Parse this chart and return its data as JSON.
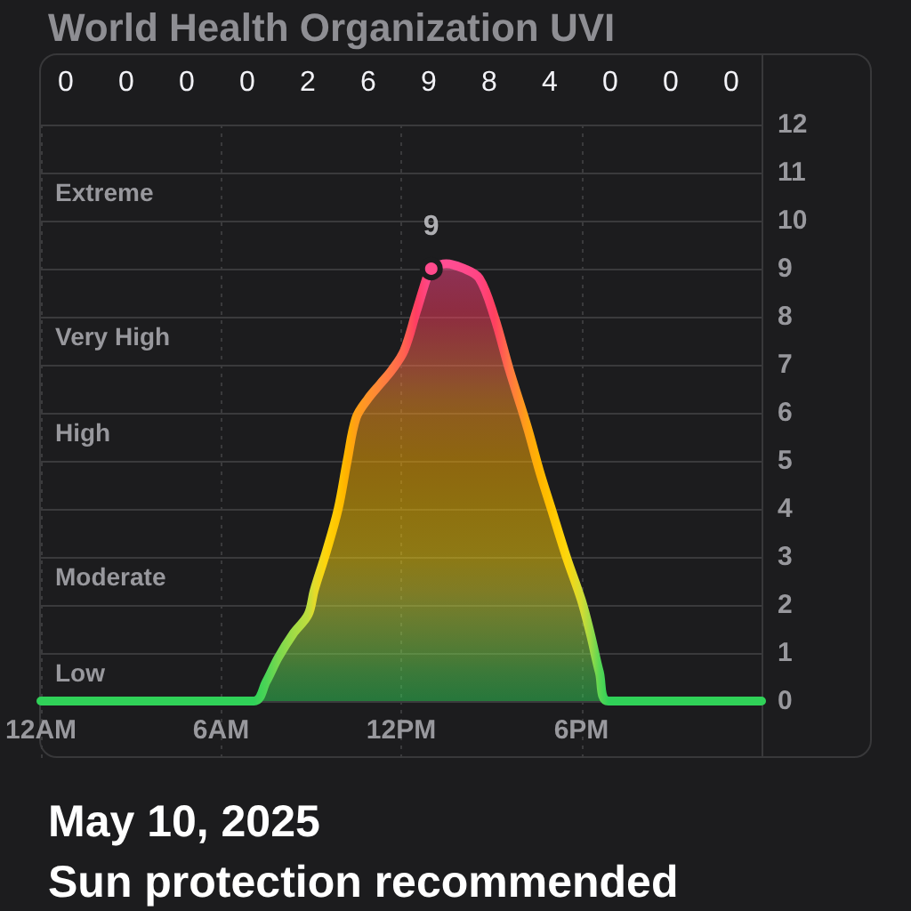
{
  "chart_data": {
    "type": "area",
    "title": "World Health Organization UVI",
    "annotations": [
      {
        "text": "9",
        "x": "2025-05-10T13:00",
        "y": 9
      },
      "0",
      "0",
      "0",
      "0",
      "2",
      "6",
      "9",
      "8",
      "4",
      "0",
      "0",
      "0",
      "Extreme",
      "Very High",
      "High",
      "Moderate",
      "Low",
      "May 10, 2025",
      "Sun protection recommended"
    ],
    "x": [
      "2025-05-10T00:00",
      "2025-05-10T07:06",
      "2025-05-10T07:30",
      "2025-05-10T07:54",
      "2025-05-10T08:24",
      "2025-05-10T08:54",
      "2025-05-10T09:06",
      "2025-05-10T09:30",
      "2025-05-10T09:54",
      "2025-05-10T10:12",
      "2025-05-10T10:30",
      "2025-05-10T10:54",
      "2025-05-10T11:18",
      "2025-05-10T11:42",
      "2025-05-10T12:06",
      "2025-05-10T12:30",
      "2025-05-10T12:54",
      "2025-05-10T13:00",
      "2025-05-10T13:30",
      "2025-05-10T14:06",
      "2025-05-10T14:36",
      "2025-05-10T15:06",
      "2025-05-10T15:36",
      "2025-05-10T16:12",
      "2025-05-10T16:36",
      "2025-05-10T17:00",
      "2025-05-10T17:30",
      "2025-05-10T18:00",
      "2025-05-10T18:18",
      "2025-05-10T18:36",
      "2025-05-10T18:54",
      "2025-05-11T00:00"
    ],
    "series": [
      {
        "values": [
          0,
          0,
          0.4,
          0.9,
          1.4,
          1.8,
          2.3,
          3.1,
          4.0,
          5.0,
          5.9,
          6.3,
          6.6,
          6.9,
          7.3,
          8.1,
          8.9,
          9.0,
          9.1,
          9.0,
          8.8,
          8.0,
          6.9,
          5.7,
          4.8,
          4.0,
          3.0,
          2.1,
          1.4,
          0.6,
          0,
          0
        ],
        "colors": [
          "#30d158",
          "#30d158",
          "#4cd456",
          "#78d84e",
          "#a0db46",
          "#bedd3e",
          "#e2db2c",
          "#ffd40a",
          "#ffc400",
          "#ffb000",
          "#ff9e18",
          "#ff922a",
          "#ff843a",
          "#ff7446",
          "#ff6150",
          "#ff3d63",
          "#ff4786",
          "#ff4a8c",
          "#ff4e94",
          "#ff4a8c",
          "#ff4482",
          "#ff4060",
          "#ff7446",
          "#ffa214",
          "#ffb400",
          "#ffc400",
          "#fdd60c",
          "#d4dc34",
          "#a0db46",
          "#5ad654",
          "#30d158",
          "#30d158"
        ]
      }
    ],
    "xlim": [
      "2025-05-10T00:00",
      "2025-05-11T00:00"
    ],
    "xticks": [
      {
        "value": "2025-05-10T00:00",
        "label": "12AM"
      },
      {
        "value": "2025-05-10T06:00",
        "label": "6AM"
      },
      {
        "value": "2025-05-10T12:00",
        "label": "12PM"
      },
      {
        "value": "2025-05-10T18:00",
        "label": "6PM"
      }
    ],
    "ylim": [
      0,
      12
    ],
    "yticks": [
      0,
      1,
      2,
      3,
      4,
      5,
      6,
      7,
      8,
      9,
      10,
      11,
      12
    ],
    "grid": true,
    "marker": "none"
  }
}
